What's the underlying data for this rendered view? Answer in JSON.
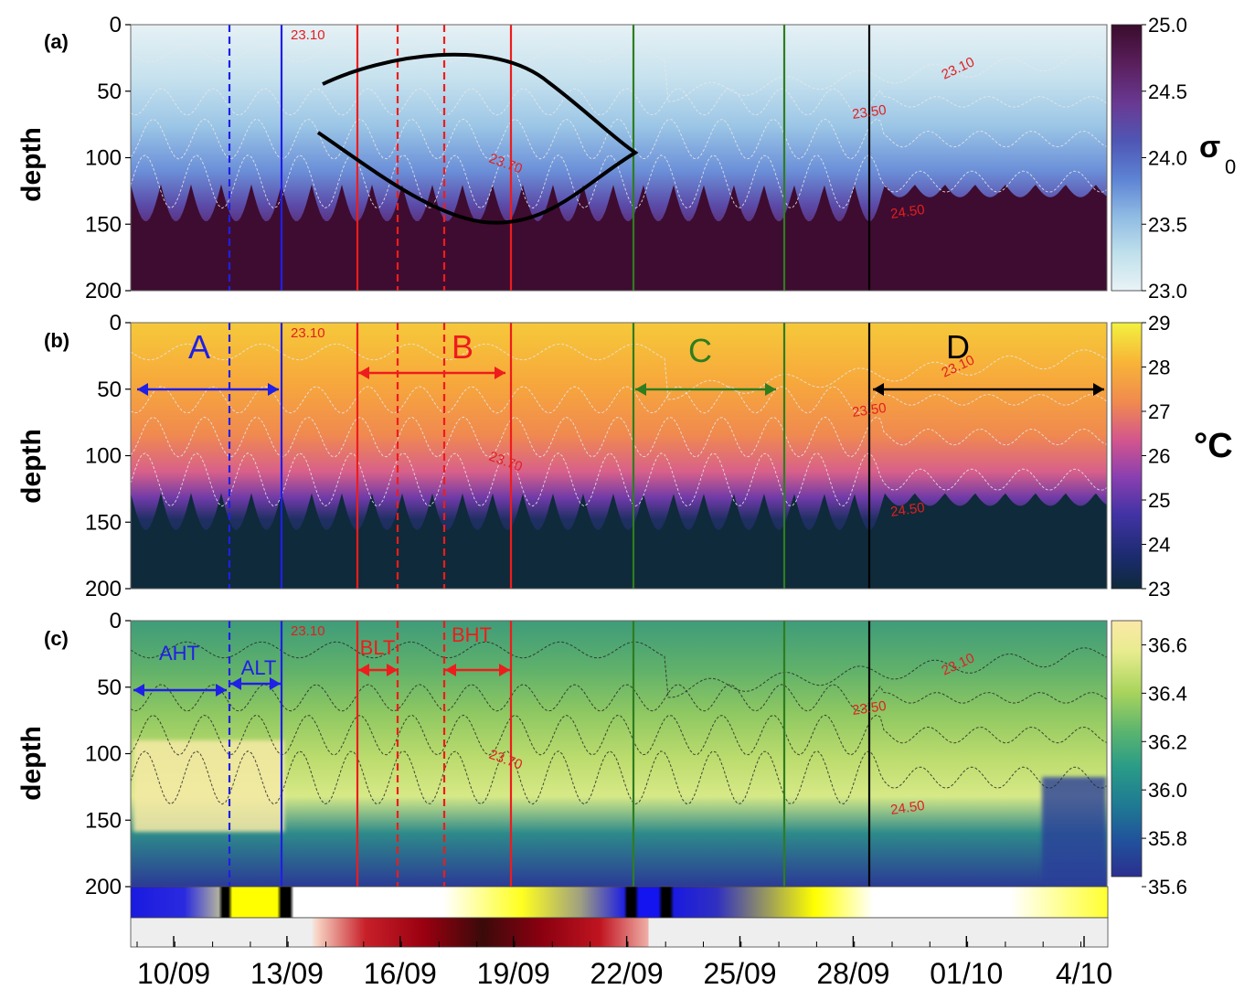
{
  "colors": {
    "blue": "#1f1fe6",
    "red": "#ee1c1c",
    "green": "#2e7d1f",
    "black": "#000000",
    "label_red": "#e02020"
  },
  "x_axis": {
    "ticks": [
      "10/09",
      "13/09",
      "16/09",
      "19/09",
      "22/09",
      "25/09",
      "28/09",
      "01/10",
      "4/10"
    ]
  },
  "chart_data": [
    {
      "type": "heatmap",
      "panel": "(a)",
      "ylabel": "depth",
      "y_ticks": [
        "0",
        "50",
        "100",
        "150",
        "200"
      ],
      "ylim": [
        200,
        0
      ],
      "colorbar": {
        "label": "σ",
        "label_sub": "0",
        "min": 23.0,
        "max": 25.0,
        "ticks": [
          "25.0",
          "24.5",
          "24.0",
          "23.5",
          "23.0"
        ],
        "colors": [
          "#e9f3f6",
          "#bfe0ec",
          "#8fbbe3",
          "#5d83d4",
          "#4f57b5",
          "#693a94",
          "#5a1f5d",
          "#3a0c2c"
        ]
      },
      "contour_labels": [
        "23.10",
        "23.50",
        "23.70",
        "24.50",
        "23.10"
      ],
      "annotation": "black lens-shaped outline"
    },
    {
      "type": "heatmap",
      "panel": "(b)",
      "ylabel": "depth",
      "y_ticks": [
        "0",
        "50",
        "100",
        "150",
        "200"
      ],
      "ylim": [
        200,
        0
      ],
      "colorbar": {
        "label": "°C",
        "min": 23,
        "max": 29,
        "ticks": [
          "29",
          "28",
          "27",
          "26",
          "25",
          "24",
          "23"
        ],
        "colors": [
          "#0f2a3a",
          "#1b2b6e",
          "#4233a5",
          "#8a3fb0",
          "#d4568c",
          "#f08a4f",
          "#f8b437",
          "#f2f23f"
        ]
      },
      "periods": [
        {
          "label": "A",
          "color": "#1f1fe6"
        },
        {
          "label": "B",
          "color": "#ee1c1c"
        },
        {
          "label": "C",
          "color": "#2e7d1f"
        },
        {
          "label": "D",
          "color": "#000000"
        }
      ],
      "contour_labels": [
        "23.10",
        "23.50",
        "23.70",
        "24.50",
        "23.10"
      ]
    },
    {
      "type": "heatmap",
      "panel": "(c)",
      "ylabel": "depth",
      "y_ticks": [
        "0",
        "50",
        "100",
        "150",
        "200"
      ],
      "ylim": [
        200,
        0
      ],
      "colorbar": {
        "label": "",
        "min": 35.6,
        "max": 36.7,
        "ticks": [
          "36.6",
          "36.4",
          "36.2",
          "36.0",
          "35.8",
          "35.6"
        ],
        "colors": [
          "#2b2f8f",
          "#21529c",
          "#1f7a93",
          "#2a9c87",
          "#5cb56e",
          "#a9d45c",
          "#e8ec8f",
          "#fbe8a8"
        ]
      },
      "sub_periods": [
        {
          "label": "AHT",
          "color": "#1f1fe6"
        },
        {
          "label": "ALT",
          "color": "#1f1fe6"
        },
        {
          "label": "BLT",
          "color": "#ee1c1c"
        },
        {
          "label": "BHT",
          "color": "#ee1c1c"
        }
      ],
      "contour_labels": [
        "23.10",
        "23.50",
        "23.70",
        "24.50",
        "23.10"
      ]
    }
  ]
}
